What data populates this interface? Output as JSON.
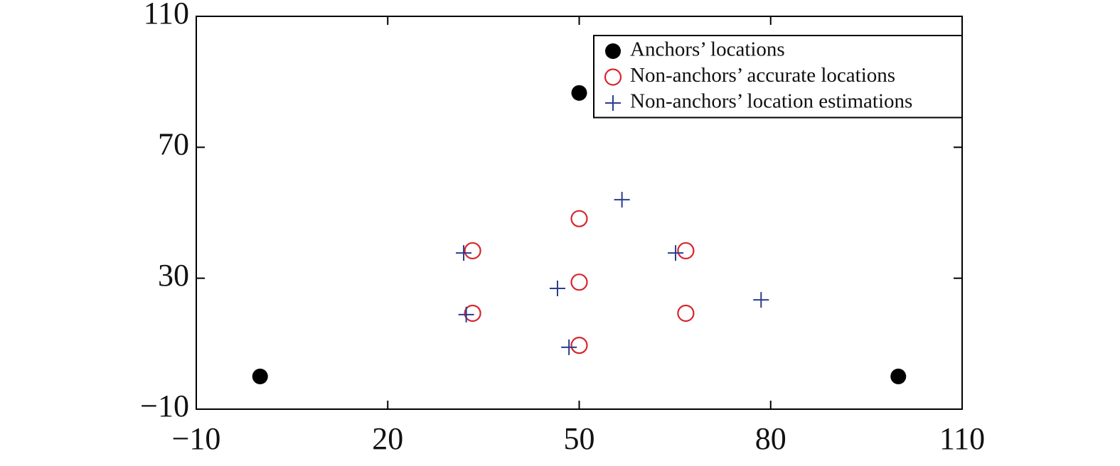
{
  "chart_data": {
    "type": "scatter",
    "xlim": [
      -10,
      110
    ],
    "ylim": [
      -10,
      110
    ],
    "xticks": [
      {
        "value": -10,
        "label": "−10"
      },
      20,
      50,
      80,
      110
    ],
    "yticks": [
      {
        "value": -10,
        "label": "−10"
      },
      30,
      70,
      110
    ],
    "grid": false,
    "legend": "upper right",
    "series": [
      {
        "name": "Anchors’ locations",
        "color": "#000000",
        "marker": "filled-circle",
        "x": [
          0,
          50,
          100
        ],
        "values": [
          0,
          86.6,
          0
        ]
      },
      {
        "name": "Non-anchors’ accurate locations",
        "color": "#d7262e",
        "marker": "circle",
        "x": [
          33.3,
          50,
          66.7,
          50,
          33.3,
          66.7,
          50
        ],
        "values": [
          38.4,
          48.2,
          38.4,
          28.8,
          19.3,
          19.3,
          9.5
        ]
      },
      {
        "name": "Non-anchors’ location estimations",
        "color": "#2b3d8f",
        "marker": "plus",
        "x": [
          56.7,
          31.9,
          65.1,
          46.6,
          32.3,
          78.5,
          48.4
        ],
        "values": [
          54,
          37.7,
          37.7,
          26.9,
          18.9,
          23.4,
          8.9
        ]
      }
    ]
  }
}
